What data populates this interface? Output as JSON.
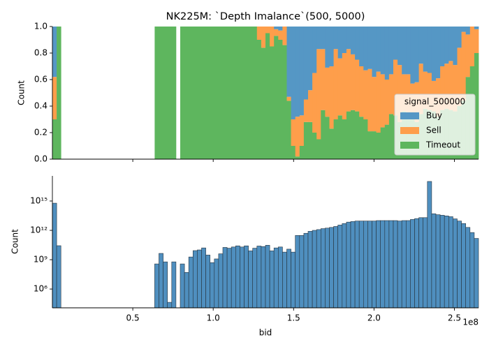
{
  "chart_data": [
    {
      "type": "histogram",
      "multiple": "fill",
      "title": "NK225M: `Depth Imalance`(500, 5000)",
      "ylabel": "Count",
      "xlim": [
        0,
        2.65
      ],
      "ylim": [
        0,
        1
      ],
      "yticks": [
        {
          "value": 0,
          "label": "0.0"
        },
        0.2,
        0.4,
        0.6,
        0.8,
        {
          "value": 1,
          "label": "1.0"
        }
      ],
      "legend": "lower right",
      "legend_title": "signal_500000",
      "bins": [
        0,
        0.0265,
        0.053,
        0.0795,
        0.106,
        0.1325,
        0.159,
        0.1855,
        0.212,
        0.2385,
        0.265,
        0.2915,
        0.318,
        0.3445,
        0.371,
        0.3975,
        0.424,
        0.4505,
        0.477,
        0.5035,
        0.53,
        0.5565,
        0.583,
        0.6095,
        0.636,
        0.6625,
        0.689,
        0.7155,
        0.742,
        0.7685,
        0.795,
        0.8215,
        0.848,
        0.8745,
        0.901,
        0.9275,
        0.954,
        0.9805,
        1.007,
        1.0335,
        1.06,
        1.0865,
        1.113,
        1.1395,
        1.166,
        1.1925,
        1.219,
        1.2455,
        1.272,
        1.2985,
        1.325,
        1.3515,
        1.378,
        1.4045,
        1.431,
        1.4575,
        1.484,
        1.5105,
        1.537,
        1.5635,
        1.59,
        1.6165,
        1.643,
        1.6695,
        1.696,
        1.7225,
        1.749,
        1.7755,
        1.802,
        1.8285,
        1.855,
        1.8815,
        1.908,
        1.9345,
        1.961,
        1.9875,
        2.014,
        2.0405,
        2.067,
        2.0935,
        2.12,
        2.1465,
        2.173,
        2.1995,
        2.226,
        2.2525,
        2.279,
        2.3055,
        2.332,
        2.3585,
        2.385,
        2.4115,
        2.438,
        2.4645,
        2.491,
        2.5175,
        2.544,
        2.5705,
        2.597,
        2.6235,
        2.65
      ],
      "series": [
        {
          "name": "Buy",
          "color": "#5597c5",
          "values": [
            0.38,
            0,
            null,
            null,
            null,
            null,
            null,
            null,
            null,
            null,
            null,
            null,
            null,
            null,
            null,
            null,
            null,
            null,
            null,
            null,
            null,
            null,
            null,
            null,
            0,
            0,
            0,
            0,
            0,
            null,
            0,
            0,
            0,
            0,
            0,
            0,
            0,
            0,
            0,
            0,
            0,
            0,
            0,
            0,
            0,
            0,
            0,
            0,
            0,
            0,
            0,
            0,
            0.02,
            0.03,
            0,
            0.53,
            0.7,
            0.68,
            0.67,
            0.55,
            0.48,
            0.35,
            0.17,
            0.17,
            0.31,
            0.3,
            0.17,
            0.24,
            0.2,
            0.17,
            0.21,
            0.25,
            0.3,
            0.33,
            0.32,
            0.38,
            0.34,
            0.36,
            0.4,
            0.36,
            0.25,
            0.29,
            0.36,
            0.36,
            0.43,
            0.42,
            0.28,
            0.34,
            0.35,
            0.41,
            0.39,
            0.3,
            0.28,
            0.26,
            0.29,
            0.16,
            0.04,
            0.06,
            0,
            0.02
          ]
        },
        {
          "name": "Sell",
          "color": "#fe9e4b",
          "values": [
            0.32,
            0,
            null,
            null,
            null,
            null,
            null,
            null,
            null,
            null,
            null,
            null,
            null,
            null,
            null,
            null,
            null,
            null,
            null,
            null,
            null,
            null,
            null,
            null,
            0,
            0,
            0,
            0,
            0,
            null,
            0,
            0,
            0,
            0,
            0,
            0,
            0,
            0,
            0,
            0,
            0,
            0,
            0,
            0,
            0,
            0,
            0,
            0,
            0.1,
            0.16,
            0.05,
            0.15,
            0.05,
            0.07,
            0.14,
            0.03,
            0.2,
            0.3,
            0.23,
            0.17,
            0.24,
            0.45,
            0.68,
            0.46,
            0.37,
            0.47,
            0.53,
            0.43,
            0.5,
            0.47,
            0.42,
            0.39,
            0.38,
            0.37,
            0.47,
            0.41,
            0.46,
            0.4,
            0.34,
            0.3,
            0.42,
            0.43,
            0.28,
            0.34,
            0.25,
            0.3,
            0.38,
            0.28,
            0.28,
            0.23,
            0.29,
            0.33,
            0.34,
            0.37,
            0.35,
            0.44,
            0.52,
            0.32,
            0.3,
            0.18
          ]
        },
        {
          "name": "Timeout",
          "color": "#5eb65e",
          "values": [
            0.3,
            1,
            null,
            null,
            null,
            null,
            null,
            null,
            null,
            null,
            null,
            null,
            null,
            null,
            null,
            null,
            null,
            null,
            null,
            null,
            null,
            null,
            null,
            null,
            1,
            1,
            1,
            1,
            1,
            null,
            1,
            1,
            1,
            1,
            1,
            1,
            1,
            1,
            1,
            1,
            1,
            1,
            1,
            1,
            1,
            1,
            1,
            1,
            0.9,
            0.84,
            0.95,
            0.85,
            0.93,
            0.9,
            0.86,
            0.44,
            0.1,
            0.02,
            0.1,
            0.28,
            0.28,
            0.2,
            0.15,
            0.37,
            0.32,
            0.23,
            0.3,
            0.33,
            0.3,
            0.36,
            0.37,
            0.36,
            0.32,
            0.3,
            0.21,
            0.21,
            0.2,
            0.24,
            0.26,
            0.34,
            0.33,
            0.28,
            0.36,
            0.3,
            0.32,
            0.28,
            0.34,
            0.38,
            0.37,
            0.36,
            0.32,
            0.37,
            0.38,
            0.37,
            0.36,
            0.4,
            0.44,
            0.62,
            0.7,
            0.8
          ]
        }
      ]
    },
    {
      "type": "histogram",
      "ylabel": "Count",
      "xlabel": "bid",
      "x_offset": "1e8",
      "log_y": true,
      "color": "#4f8fbf",
      "xlim": [
        0,
        2.65
      ],
      "xticks": [
        0.5,
        {
          "value": 1,
          "label": "1.0"
        },
        1.5,
        {
          "value": 2,
          "label": "2.0"
        },
        2.5
      ],
      "ylim": [
        12000,
        3.7e+17
      ],
      "yticks": [
        {
          "value": 1000000,
          "label": "10⁶"
        },
        {
          "value": 1000000000,
          "label": "10⁹"
        },
        {
          "value": 1000000000000,
          "label": "10¹²"
        },
        {
          "value": 1000000000000000,
          "label": "10¹⁵"
        }
      ],
      "bins": [
        0,
        0.0265,
        0.053,
        0.0795,
        0.106,
        0.1325,
        0.159,
        0.1855,
        0.212,
        0.2385,
        0.265,
        0.2915,
        0.318,
        0.3445,
        0.371,
        0.3975,
        0.424,
        0.4505,
        0.477,
        0.5035,
        0.53,
        0.5565,
        0.583,
        0.6095,
        0.636,
        0.6625,
        0.689,
        0.7155,
        0.742,
        0.7685,
        0.795,
        0.8215,
        0.848,
        0.8745,
        0.901,
        0.9275,
        0.954,
        0.9805,
        1.007,
        1.0335,
        1.06,
        1.0865,
        1.113,
        1.1395,
        1.166,
        1.1925,
        1.219,
        1.2455,
        1.272,
        1.2985,
        1.325,
        1.3515,
        1.378,
        1.4045,
        1.431,
        1.4575,
        1.484,
        1.5105,
        1.537,
        1.5635,
        1.59,
        1.6165,
        1.643,
        1.6695,
        1.696,
        1.7225,
        1.749,
        1.7755,
        1.802,
        1.8285,
        1.855,
        1.8815,
        1.908,
        1.9345,
        1.961,
        1.9875,
        2.014,
        2.0405,
        2.067,
        2.0935,
        2.12,
        2.1465,
        2.173,
        2.1995,
        2.226,
        2.2525,
        2.279,
        2.3055,
        2.332,
        2.3585,
        2.385,
        2.4115,
        2.438,
        2.4645,
        2.491,
        2.5175,
        2.544,
        2.5705,
        2.597,
        2.6235,
        2.65
      ],
      "values": [
        600000000000000.0,
        27000000000.0,
        null,
        null,
        null,
        null,
        null,
        null,
        null,
        null,
        null,
        null,
        null,
        null,
        null,
        null,
        null,
        null,
        null,
        null,
        null,
        null,
        null,
        null,
        370000000.0,
        4400000000.0,
        600000000.0,
        44000.0,
        600000000.0,
        null,
        370000000.0,
        50000000.0,
        1900000000.0,
        8500000000.0,
        10000000000.0,
        16000000000.0,
        3000000000.0,
        500000000.0,
        1200000000.0,
        4000000000.0,
        18000000000.0,
        15000000000.0,
        20000000000.0,
        26000000000.0,
        20000000000.0,
        26000000000.0,
        8000000000.0,
        15000000000.0,
        25000000000.0,
        22000000000.0,
        30000000000.0,
        8000000000.0,
        16000000000.0,
        20000000000.0,
        6000000000.0,
        12000000000.0,
        6000000000.0,
        300000000000.0,
        300000000000.0,
        500000000000.0,
        800000000000.0,
        1000000000000.0,
        1200000000000.0,
        1500000000000.0,
        1700000000000.0,
        2000000000000.0,
        2500000000000.0,
        3500000000000.0,
        5000000000000.0,
        7000000000000.0,
        8000000000000.0,
        9000000000000.0,
        9000000000000.0,
        9000000000000.0,
        9000000000000.0,
        9000000000000.0,
        10000000000000.0,
        10000000000000.0,
        10000000000000.0,
        10000000000000.0,
        10000000000000.0,
        9000000000000.0,
        10000000000000.0,
        10000000000000.0,
        13000000000000.0,
        16000000000000.0,
        20000000000000.0,
        20000000000000.0,
        1e+17,
        50000000000000.0,
        40000000000000.0,
        35000000000000.0,
        30000000000000.0,
        25000000000000.0,
        15000000000000.0,
        9000000000000.0,
        5000000000000.0,
        2000000000000.0,
        600000000000.0,
        150000000000.0
      ]
    }
  ]
}
